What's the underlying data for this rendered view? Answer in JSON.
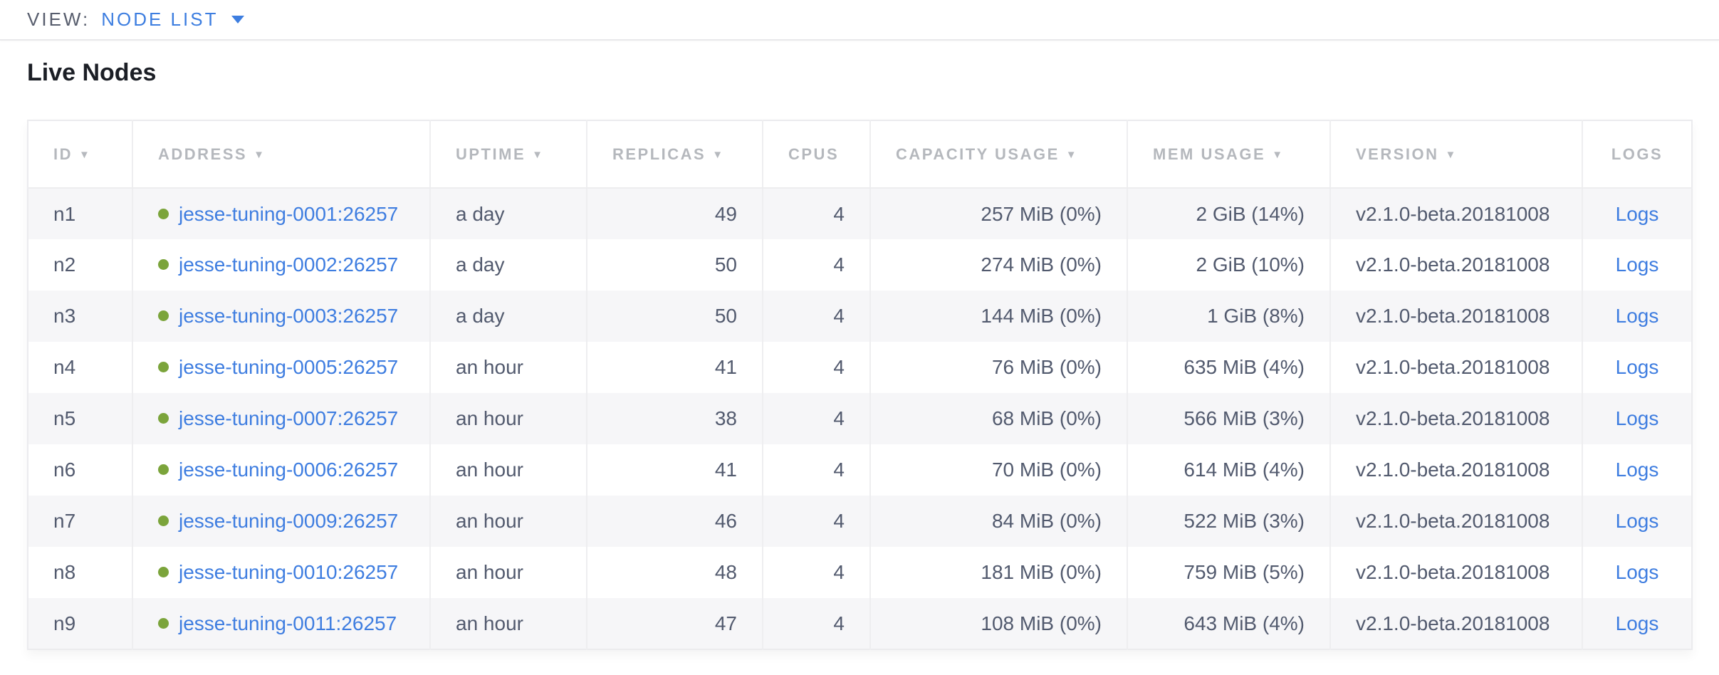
{
  "view_bar": {
    "label": "VIEW:",
    "selected": "NODE LIST"
  },
  "page": {
    "title": "Live Nodes"
  },
  "colors": {
    "link_blue": "#3e7de0",
    "healthy_green": "#7ba43b",
    "header_gray": "#b5b8bd",
    "cell_slate": "#525a6e",
    "row_stripe": "#f6f6f8"
  },
  "table": {
    "sort_arrow": "▼",
    "columns": [
      {
        "key": "id",
        "label": "ID",
        "sortable": true,
        "align": "left"
      },
      {
        "key": "address",
        "label": "ADDRESS",
        "sortable": true,
        "align": "left"
      },
      {
        "key": "uptime",
        "label": "UPTIME",
        "sortable": true,
        "align": "left"
      },
      {
        "key": "replicas",
        "label": "REPLICAS",
        "sortable": true,
        "align": "right"
      },
      {
        "key": "cpus",
        "label": "CPUS",
        "sortable": false,
        "align": "right"
      },
      {
        "key": "capacity",
        "label": "CAPACITY USAGE",
        "sortable": true,
        "align": "right"
      },
      {
        "key": "mem",
        "label": "MEM USAGE",
        "sortable": true,
        "align": "right"
      },
      {
        "key": "version",
        "label": "VERSION",
        "sortable": true,
        "align": "left"
      },
      {
        "key": "logs",
        "label": "LOGS",
        "sortable": false,
        "align": "center"
      }
    ],
    "rows": [
      {
        "id": "n1",
        "address": "jesse-tuning-0001:26257",
        "uptime": "a day",
        "replicas": "49",
        "cpus": "4",
        "capacity": "257 MiB (0%)",
        "mem": "2 GiB (14%)",
        "version": "v2.1.0-beta.20181008",
        "logs": "Logs"
      },
      {
        "id": "n2",
        "address": "jesse-tuning-0002:26257",
        "uptime": "a day",
        "replicas": "50",
        "cpus": "4",
        "capacity": "274 MiB (0%)",
        "mem": "2 GiB (10%)",
        "version": "v2.1.0-beta.20181008",
        "logs": "Logs"
      },
      {
        "id": "n3",
        "address": "jesse-tuning-0003:26257",
        "uptime": "a day",
        "replicas": "50",
        "cpus": "4",
        "capacity": "144 MiB (0%)",
        "mem": "1 GiB (8%)",
        "version": "v2.1.0-beta.20181008",
        "logs": "Logs"
      },
      {
        "id": "n4",
        "address": "jesse-tuning-0005:26257",
        "uptime": "an hour",
        "replicas": "41",
        "cpus": "4",
        "capacity": "76 MiB (0%)",
        "mem": "635 MiB (4%)",
        "version": "v2.1.0-beta.20181008",
        "logs": "Logs"
      },
      {
        "id": "n5",
        "address": "jesse-tuning-0007:26257",
        "uptime": "an hour",
        "replicas": "38",
        "cpus": "4",
        "capacity": "68 MiB (0%)",
        "mem": "566 MiB (3%)",
        "version": "v2.1.0-beta.20181008",
        "logs": "Logs"
      },
      {
        "id": "n6",
        "address": "jesse-tuning-0006:26257",
        "uptime": "an hour",
        "replicas": "41",
        "cpus": "4",
        "capacity": "70 MiB (0%)",
        "mem": "614 MiB (4%)",
        "version": "v2.1.0-beta.20181008",
        "logs": "Logs"
      },
      {
        "id": "n7",
        "address": "jesse-tuning-0009:26257",
        "uptime": "an hour",
        "replicas": "46",
        "cpus": "4",
        "capacity": "84 MiB (0%)",
        "mem": "522 MiB (3%)",
        "version": "v2.1.0-beta.20181008",
        "logs": "Logs"
      },
      {
        "id": "n8",
        "address": "jesse-tuning-0010:26257",
        "uptime": "an hour",
        "replicas": "48",
        "cpus": "4",
        "capacity": "181 MiB (0%)",
        "mem": "759 MiB (5%)",
        "version": "v2.1.0-beta.20181008",
        "logs": "Logs"
      },
      {
        "id": "n9",
        "address": "jesse-tuning-0011:26257",
        "uptime": "an hour",
        "replicas": "47",
        "cpus": "4",
        "capacity": "108 MiB (0%)",
        "mem": "643 MiB (4%)",
        "version": "v2.1.0-beta.20181008",
        "logs": "Logs"
      }
    ]
  }
}
